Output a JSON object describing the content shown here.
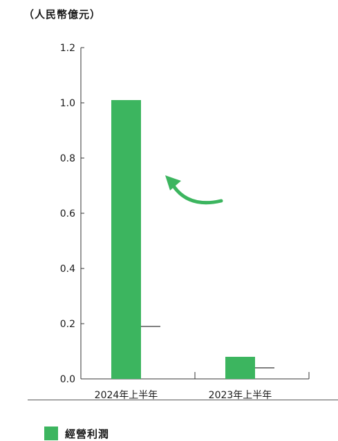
{
  "chart_data": {
    "type": "bar",
    "title": "",
    "unit_label": "（人民幣億元）",
    "xlabel": "",
    "ylabel": "",
    "categories": [
      "2024年上半年",
      "2023年上半年"
    ],
    "series": [
      {
        "name": "經營利潤",
        "values": [
          1.01,
          0.08
        ],
        "color": "#3cb55f"
      }
    ],
    "ylim": [
      0,
      1.2
    ],
    "yticks": [
      "0.0",
      "0.2",
      "0.4",
      "0.6",
      "0.8",
      "1.0",
      "1.2"
    ],
    "grid": false,
    "legend_position": "bottom-left",
    "annotation": {
      "type": "curved-arrow",
      "color": "#3cb55f",
      "points_to": "2024年上半年"
    }
  }
}
